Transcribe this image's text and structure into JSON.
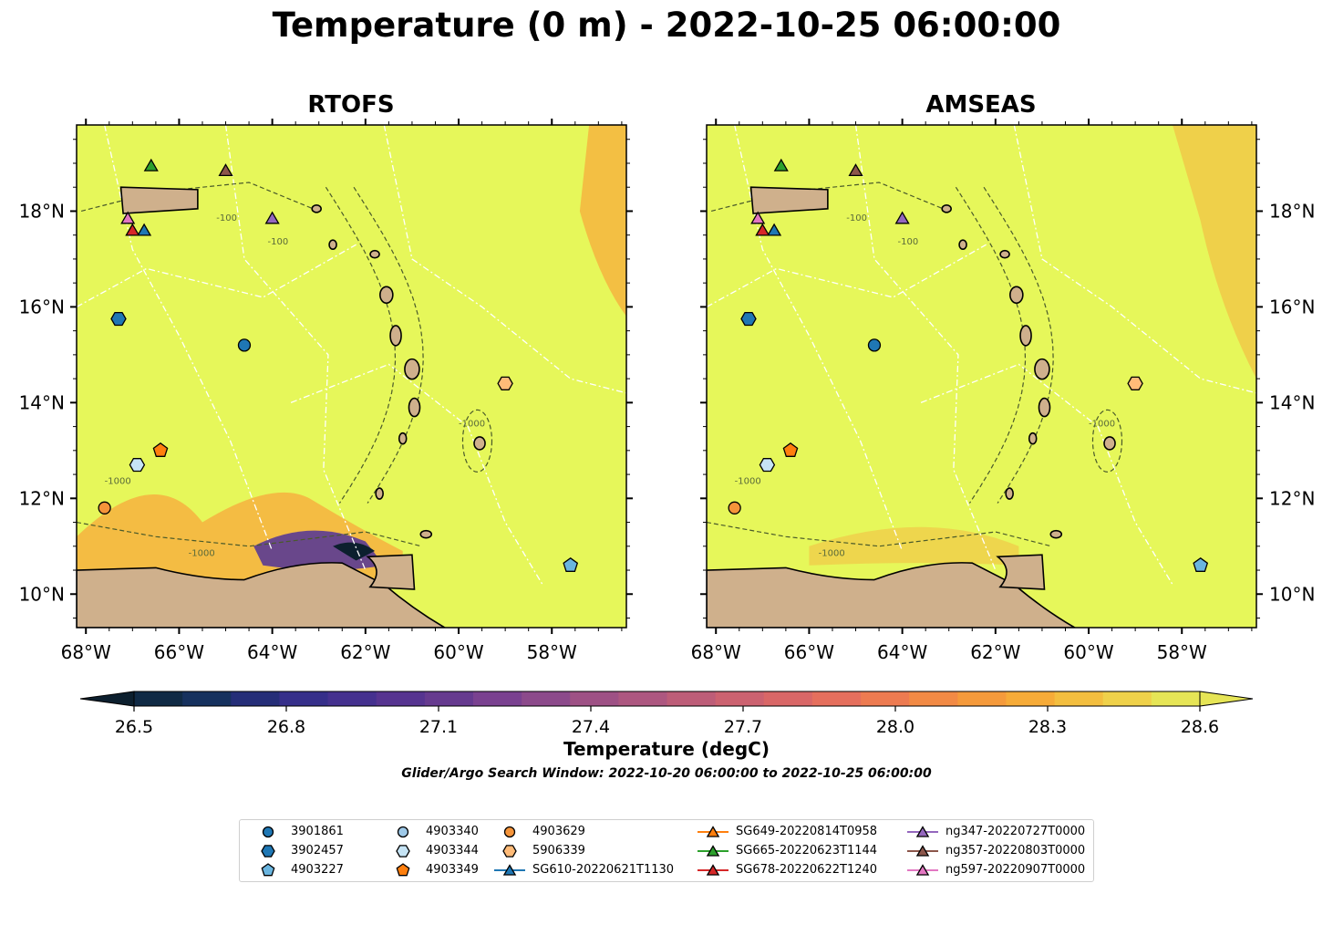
{
  "title": "Temperature (0 m) - 2022-10-25 06:00:00",
  "panels": [
    {
      "title": "RTOFS"
    },
    {
      "title": "AMSEAS"
    }
  ],
  "map": {
    "lon_range": [
      -68.2,
      -56.4
    ],
    "lat_range": [
      9.3,
      19.8
    ],
    "lon_ticks": [
      "68°W",
      "66°W",
      "64°W",
      "62°W",
      "60°W",
      "58°W"
    ],
    "lat_ticks": [
      "18°N",
      "16°N",
      "14°N",
      "12°N",
      "10°N"
    ],
    "isobath_labels": [
      "-100",
      "-1000"
    ],
    "colors": {
      "ocean": "#e6f75a",
      "land": "#cfb08c",
      "warm_patch": "#f5b540",
      "cool_patch": "#5a3a93",
      "isobath": "#4a5a2a",
      "eez_lines": "#ffffff"
    }
  },
  "colorbar": {
    "ticks": [
      "26.5",
      "26.8",
      "27.1",
      "27.4",
      "27.7",
      "28.0",
      "28.3",
      "28.6"
    ],
    "label": "Temperature (degC)",
    "colors": [
      "#0c1f2e",
      "#102a45",
      "#16315e",
      "#252e78",
      "#362f8a",
      "#45318f",
      "#563490",
      "#663a8f",
      "#7a4190",
      "#8c4a8b",
      "#9e5185",
      "#ad5780",
      "#bd5d78",
      "#cc6270",
      "#d96767",
      "#e56f5d",
      "#ed7b51",
      "#f28a45",
      "#f59a3b",
      "#f6ab38",
      "#f3be3f",
      "#efd14a",
      "#e6e556"
    ]
  },
  "search_window": "Glider/Argo Search Window: 2022-10-20 06:00:00 to 2022-10-25 06:00:00",
  "legend": [
    {
      "label": "3901861",
      "marker": "circle",
      "color": "#1f77b4"
    },
    {
      "label": "3902457",
      "marker": "hexagon",
      "color": "#1f77b4"
    },
    {
      "label": "4903227",
      "marker": "pentagon",
      "color": "#6ab5df"
    },
    {
      "label": "4903340",
      "marker": "circle",
      "color": "#9ec9e8"
    },
    {
      "label": "4903344",
      "marker": "hexagon",
      "color": "#c6e4f5"
    },
    {
      "label": "4903349",
      "marker": "pentagon",
      "color": "#ff7f0e"
    },
    {
      "label": "4903629",
      "marker": "circle",
      "color": "#f5943a"
    },
    {
      "label": "5906339",
      "marker": "hexagon",
      "color": "#ffbb78"
    },
    {
      "label": "SG610-20220621T1130",
      "marker": "triangle",
      "color": "#1f77b4"
    },
    {
      "label": "SG649-20220814T0958",
      "marker": "triangle",
      "color": "#ff7f0e"
    },
    {
      "label": "SG665-20220623T1144",
      "marker": "triangle",
      "color": "#2ca02c"
    },
    {
      "label": "SG678-20220622T1240",
      "marker": "triangle",
      "color": "#d62728"
    },
    {
      "label": "ng347-20220727T0000",
      "marker": "triangle",
      "color": "#9467bd"
    },
    {
      "label": "ng357-20220803T0000",
      "marker": "triangle",
      "color": "#8c564b"
    },
    {
      "label": "ng597-20220907T0000",
      "marker": "triangle",
      "color": "#e377c2"
    }
  ],
  "observations": [
    {
      "id": "3901861",
      "lon": -64.6,
      "lat": 15.2
    },
    {
      "id": "3902457",
      "lon": -67.3,
      "lat": 15.75
    },
    {
      "id": "4903227",
      "lon": -57.6,
      "lat": 10.6
    },
    {
      "id": "4903344",
      "lon": -66.9,
      "lat": 12.7
    },
    {
      "id": "4903349",
      "lon": -66.4,
      "lat": 13.0
    },
    {
      "id": "4903629",
      "lon": -67.6,
      "lat": 11.8
    },
    {
      "id": "5906339",
      "lon": -59.0,
      "lat": 14.4
    },
    {
      "id": "SG610-20220621T1130",
      "lon": -66.75,
      "lat": 17.6
    },
    {
      "id": "SG665-20220623T1144",
      "lon": -66.6,
      "lat": 18.95
    },
    {
      "id": "SG678-20220622T1240",
      "lon": -67.0,
      "lat": 17.6
    },
    {
      "id": "ng347-20220727T0000",
      "lon": -64.0,
      "lat": 17.85
    },
    {
      "id": "ng357-20220803T0000",
      "lon": -65.0,
      "lat": 18.85
    },
    {
      "id": "ng597-20220907T0000",
      "lon": -67.1,
      "lat": 17.85
    }
  ]
}
